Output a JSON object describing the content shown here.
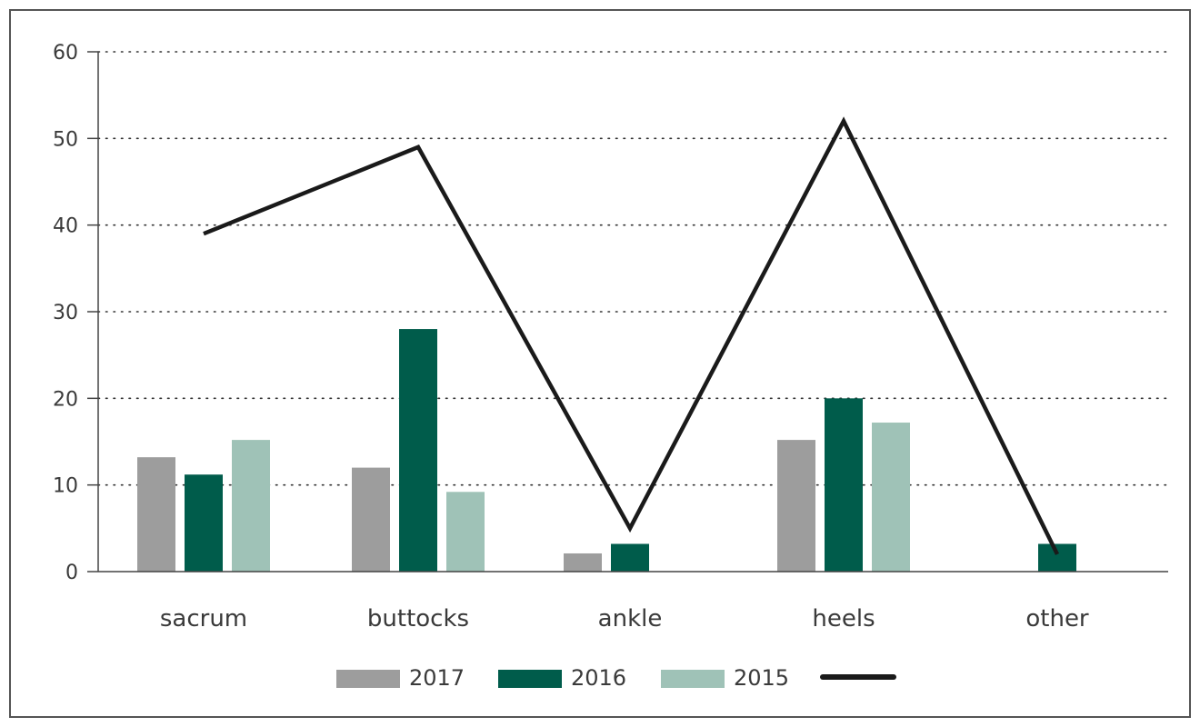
{
  "chart_data": {
    "type": "bar",
    "title": "",
    "xlabel": "",
    "ylabel": "",
    "categories": [
      "sacrum",
      "buttocks",
      "ankle",
      "heels",
      "other"
    ],
    "series": [
      {
        "name": "2017",
        "kind": "bar",
        "color": "#9d9d9d",
        "values": [
          13.2,
          12.0,
          2.1,
          15.2,
          null
        ]
      },
      {
        "name": "2016",
        "kind": "bar",
        "color": "#005c4b",
        "values": [
          11.2,
          28.0,
          3.2,
          20.0,
          3.2
        ]
      },
      {
        "name": "2015",
        "kind": "bar",
        "color": "#9fc2b7",
        "values": [
          15.2,
          9.2,
          null,
          17.2,
          null
        ]
      },
      {
        "name": "",
        "kind": "line",
        "color": "#1a1a1a",
        "values": [
          39,
          49,
          5,
          52,
          2
        ]
      }
    ],
    "ylim": [
      0,
      60
    ],
    "yticks": [
      0,
      10,
      20,
      30,
      40,
      50,
      60
    ],
    "grid": true,
    "legend": "bottom"
  }
}
